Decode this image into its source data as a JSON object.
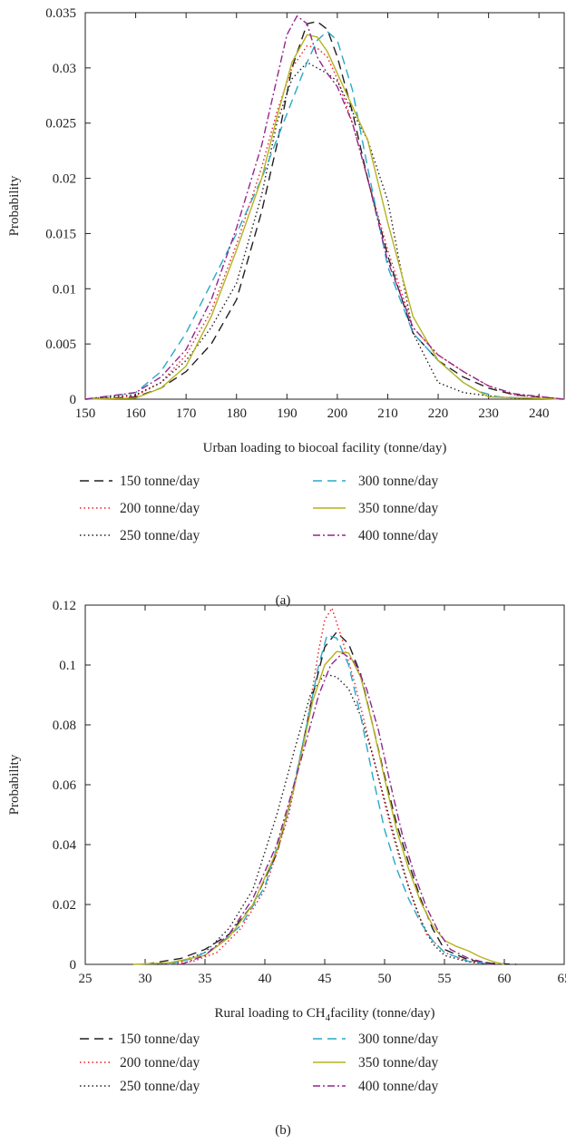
{
  "chart_data": [
    {
      "panel": "(a)",
      "type": "line",
      "xlabel": "Urban loading to biocoal facility (tonne/day)",
      "ylabel": "Probability",
      "xlim": [
        150,
        245
      ],
      "ylim": [
        0,
        0.035
      ],
      "x_ticks": [
        "150",
        "160",
        "170",
        "180",
        "190",
        "200",
        "210",
        "220",
        "230",
        "240"
      ],
      "y_ticks": [
        "0",
        "0.005",
        "0.01",
        "0.015",
        "0.02",
        "0.025",
        "0.03",
        "0.035"
      ],
      "grid": false,
      "legend_position": "below plot, two columns",
      "series": [
        {
          "name": "150 tonne/day",
          "color": "#231f20",
          "dash": "10,6",
          "x": [
            150,
            160,
            165,
            170,
            175,
            180,
            185,
            188,
            191,
            194,
            196,
            198,
            200,
            203,
            206,
            210,
            215,
            220,
            225,
            230,
            235,
            245
          ],
          "y": [
            0,
            0.0002,
            0.001,
            0.0025,
            0.005,
            0.009,
            0.017,
            0.023,
            0.03,
            0.034,
            0.0342,
            0.0335,
            0.031,
            0.026,
            0.02,
            0.013,
            0.006,
            0.0035,
            0.002,
            0.001,
            0.0004,
            0
          ]
        },
        {
          "name": "200 tonne/day",
          "color": "#ed1c24",
          "dash": "1.5,3",
          "x": [
            150,
            160,
            165,
            170,
            175,
            180,
            185,
            188,
            191,
            194,
            196,
            198,
            200,
            203,
            206,
            210,
            215,
            220,
            225,
            230,
            235,
            245
          ],
          "y": [
            0,
            0.0003,
            0.0015,
            0.004,
            0.008,
            0.014,
            0.021,
            0.026,
            0.03,
            0.032,
            0.0318,
            0.031,
            0.029,
            0.025,
            0.02,
            0.0135,
            0.0065,
            0.004,
            0.0025,
            0.0012,
            0.0004,
            0
          ]
        },
        {
          "name": "250 tonne/day",
          "color": "#231f20",
          "dash": "1.5,3",
          "x": [
            150,
            160,
            165,
            170,
            175,
            180,
            185,
            188,
            191,
            194,
            196,
            198,
            200,
            203,
            206,
            210,
            215,
            220,
            225,
            230,
            235,
            245
          ],
          "y": [
            0,
            0.0004,
            0.0015,
            0.0035,
            0.0065,
            0.0105,
            0.0185,
            0.025,
            0.029,
            0.0305,
            0.03,
            0.0295,
            0.0288,
            0.026,
            0.0235,
            0.018,
            0.006,
            0.0015,
            0.0006,
            0.0003,
            0.0001,
            0
          ]
        },
        {
          "name": "300 tonne/day",
          "color": "#29a8c8",
          "dash": "10,6",
          "x": [
            150,
            160,
            165,
            170,
            175,
            180,
            185,
            188,
            191,
            194,
            196,
            198,
            200,
            203,
            206,
            210,
            215,
            220,
            225,
            228,
            232,
            245
          ],
          "y": [
            0,
            0.0006,
            0.0025,
            0.006,
            0.0105,
            0.015,
            0.02,
            0.0235,
            0.027,
            0.0305,
            0.0325,
            0.0333,
            0.0325,
            0.028,
            0.021,
            0.012,
            0.006,
            0.0035,
            0.0015,
            0.0007,
            0.0002,
            0
          ]
        },
        {
          "name": "350 tonne/day",
          "color": "#b5b21f",
          "dash": "",
          "x": [
            150,
            160,
            165,
            170,
            175,
            180,
            185,
            188,
            191,
            194,
            196,
            198,
            200,
            203,
            206,
            210,
            215,
            220,
            225,
            230,
            245
          ],
          "y": [
            0,
            0.0001,
            0.001,
            0.003,
            0.0075,
            0.0135,
            0.02,
            0.0255,
            0.0305,
            0.033,
            0.0328,
            0.0315,
            0.0295,
            0.0265,
            0.0235,
            0.016,
            0.0075,
            0.0035,
            0.0015,
            0.0002,
            0
          ]
        },
        {
          "name": "400 tonne/day",
          "color": "#92278f",
          "dash": "8,3,2,3",
          "x": [
            150,
            160,
            165,
            170,
            175,
            180,
            185,
            188,
            190,
            192,
            194,
            196,
            198,
            200,
            203,
            206,
            210,
            215,
            220,
            225,
            230,
            235,
            245
          ],
          "y": [
            0,
            0.0006,
            0.002,
            0.0045,
            0.009,
            0.0155,
            0.023,
            0.029,
            0.033,
            0.0347,
            0.034,
            0.031,
            0.0295,
            0.0283,
            0.025,
            0.02,
            0.0125,
            0.0065,
            0.004,
            0.0025,
            0.0012,
            0.0005,
            0
          ]
        }
      ]
    },
    {
      "panel": "(b)",
      "type": "line",
      "xlabel": "Rural loading to CH",
      "xlabel_sub": "4",
      "xlabel_tail": "facility (tonne/day)",
      "ylabel": "Probability",
      "xlim": [
        25,
        65
      ],
      "ylim": [
        0,
        0.12
      ],
      "x_ticks": [
        "25",
        "30",
        "35",
        "40",
        "45",
        "50",
        "55",
        "60",
        "65"
      ],
      "y_ticks": [
        "0",
        "0.02",
        "0.04",
        "0.06",
        "0.08",
        "0.1",
        "0.12"
      ],
      "grid": false,
      "legend_position": "below plot, two columns",
      "series": [
        {
          "name": "150 tonne/day",
          "color": "#231f20",
          "dash": "10,6",
          "x": [
            30,
            33,
            35,
            37,
            39,
            41,
            42.5,
            44,
            45,
            46,
            47,
            48,
            49,
            50,
            51,
            52,
            53,
            54,
            55,
            57,
            59,
            61
          ],
          "y": [
            0,
            0.002,
            0.005,
            0.01,
            0.02,
            0.037,
            0.06,
            0.09,
            0.106,
            0.111,
            0.107,
            0.097,
            0.08,
            0.063,
            0.047,
            0.034,
            0.022,
            0.012,
            0.005,
            0.0015,
            0.0003,
            0
          ]
        },
        {
          "name": "200 tonne/day",
          "color": "#ed1c24",
          "dash": "1.5,3",
          "x": [
            32,
            34,
            36,
            38,
            40,
            42,
            43.5,
            44.5,
            45,
            45.6,
            46.5,
            47.5,
            48.5,
            49.5,
            50.5,
            51.5,
            52.5,
            53.5,
            55,
            57,
            59
          ],
          "y": [
            0,
            0.001,
            0.004,
            0.012,
            0.025,
            0.05,
            0.08,
            0.105,
            0.115,
            0.119,
            0.108,
            0.094,
            0.078,
            0.062,
            0.046,
            0.032,
            0.02,
            0.01,
            0.004,
            0.001,
            0
          ]
        },
        {
          "name": "250 tonne/day",
          "color": "#231f20",
          "dash": "1.5,3",
          "x": [
            31,
            33,
            35,
            37,
            39,
            41,
            42.5,
            43.8,
            45,
            46,
            47,
            48,
            49,
            50,
            51,
            52,
            53,
            54,
            55,
            57,
            59
          ],
          "y": [
            0,
            0.001,
            0.004,
            0.012,
            0.025,
            0.05,
            0.072,
            0.09,
            0.097,
            0.096,
            0.092,
            0.083,
            0.07,
            0.055,
            0.04,
            0.026,
            0.015,
            0.007,
            0.003,
            0.0008,
            0
          ]
        },
        {
          "name": "300 tonne/day",
          "color": "#29a8c8",
          "dash": "10,6",
          "x": [
            32,
            34,
            36,
            38,
            40,
            42,
            43.5,
            44.5,
            45.2,
            46,
            47,
            48,
            49,
            50,
            51,
            52,
            53,
            54,
            55,
            57,
            59
          ],
          "y": [
            0,
            0.002,
            0.006,
            0.013,
            0.026,
            0.052,
            0.08,
            0.1,
            0.11,
            0.109,
            0.1,
            0.083,
            0.063,
            0.045,
            0.032,
            0.022,
            0.014,
            0.008,
            0.004,
            0.001,
            0
          ]
        },
        {
          "name": "350 tonne/day",
          "color": "#b5b21f",
          "dash": "",
          "x": [
            29,
            32,
            35,
            37,
            39,
            41,
            42.5,
            44,
            45,
            46,
            47,
            48,
            49,
            50,
            51,
            52,
            53,
            54,
            55,
            56,
            57,
            58,
            59,
            60
          ],
          "y": [
            0,
            0.0005,
            0.003,
            0.009,
            0.02,
            0.038,
            0.06,
            0.088,
            0.1,
            0.1045,
            0.104,
            0.096,
            0.08,
            0.062,
            0.045,
            0.032,
            0.021,
            0.013,
            0.008,
            0.006,
            0.0045,
            0.0025,
            0.001,
            0
          ]
        },
        {
          "name": "400 tonne/day",
          "color": "#92278f",
          "dash": "8,3,2,3",
          "x": [
            33,
            35,
            37,
            39,
            41,
            43,
            44.5,
            45.5,
            46.5,
            47.5,
            48.5,
            49.5,
            50.5,
            51.5,
            52.5,
            53.5,
            54.5,
            55.5,
            57,
            59
          ],
          "y": [
            0,
            0.003,
            0.01,
            0.022,
            0.04,
            0.068,
            0.09,
            0.1,
            0.104,
            0.101,
            0.092,
            0.078,
            0.06,
            0.043,
            0.03,
            0.019,
            0.011,
            0.005,
            0.002,
            0
          ]
        }
      ]
    }
  ],
  "captions": [
    "(a)",
    "(b)"
  ]
}
